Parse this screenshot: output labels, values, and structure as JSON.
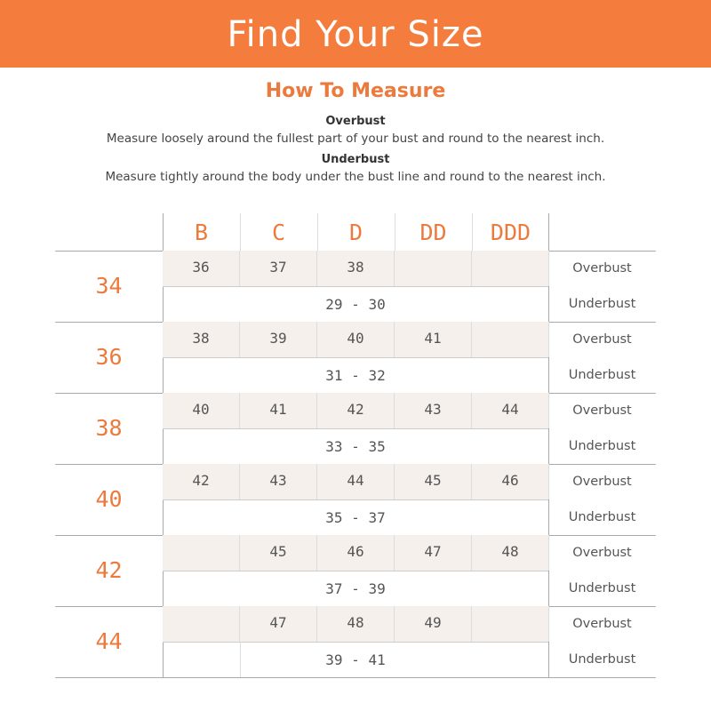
{
  "header": {
    "title": "Find Your Size"
  },
  "instructions": {
    "heading": "How To Measure",
    "overbust_label": "Overbust",
    "overbust_text": "Measure loosely around the fullest part of your bust and round to the nearest inch.",
    "underbust_label": "Underbust",
    "underbust_text": "Measure tightly around the body under the bust line and round to the nearest inch."
  },
  "table": {
    "cups": [
      "B",
      "C",
      "D",
      "DD",
      "DDD"
    ],
    "overbust_label": "Overbust",
    "underbust_label": "Underbust",
    "rows": [
      {
        "size": "34",
        "overbust": [
          "36",
          "37",
          "38",
          "",
          ""
        ],
        "underbust": "29 - 30"
      },
      {
        "size": "36",
        "overbust": [
          "38",
          "39",
          "40",
          "41",
          ""
        ],
        "underbust": "31 - 32"
      },
      {
        "size": "38",
        "overbust": [
          "40",
          "41",
          "42",
          "43",
          "44"
        ],
        "underbust": "33 - 35"
      },
      {
        "size": "40",
        "overbust": [
          "42",
          "43",
          "44",
          "45",
          "46"
        ],
        "underbust": "35 - 37"
      },
      {
        "size": "42",
        "overbust": [
          "",
          "45",
          "46",
          "47",
          "48"
        ],
        "underbust": "37 - 39"
      },
      {
        "size": "44",
        "overbust": [
          "",
          "47",
          "48",
          "49",
          ""
        ],
        "underbust": "39 - 41"
      }
    ]
  },
  "colors": {
    "accent": "#f47c3c",
    "cell_bg": "#f6f0ec"
  }
}
